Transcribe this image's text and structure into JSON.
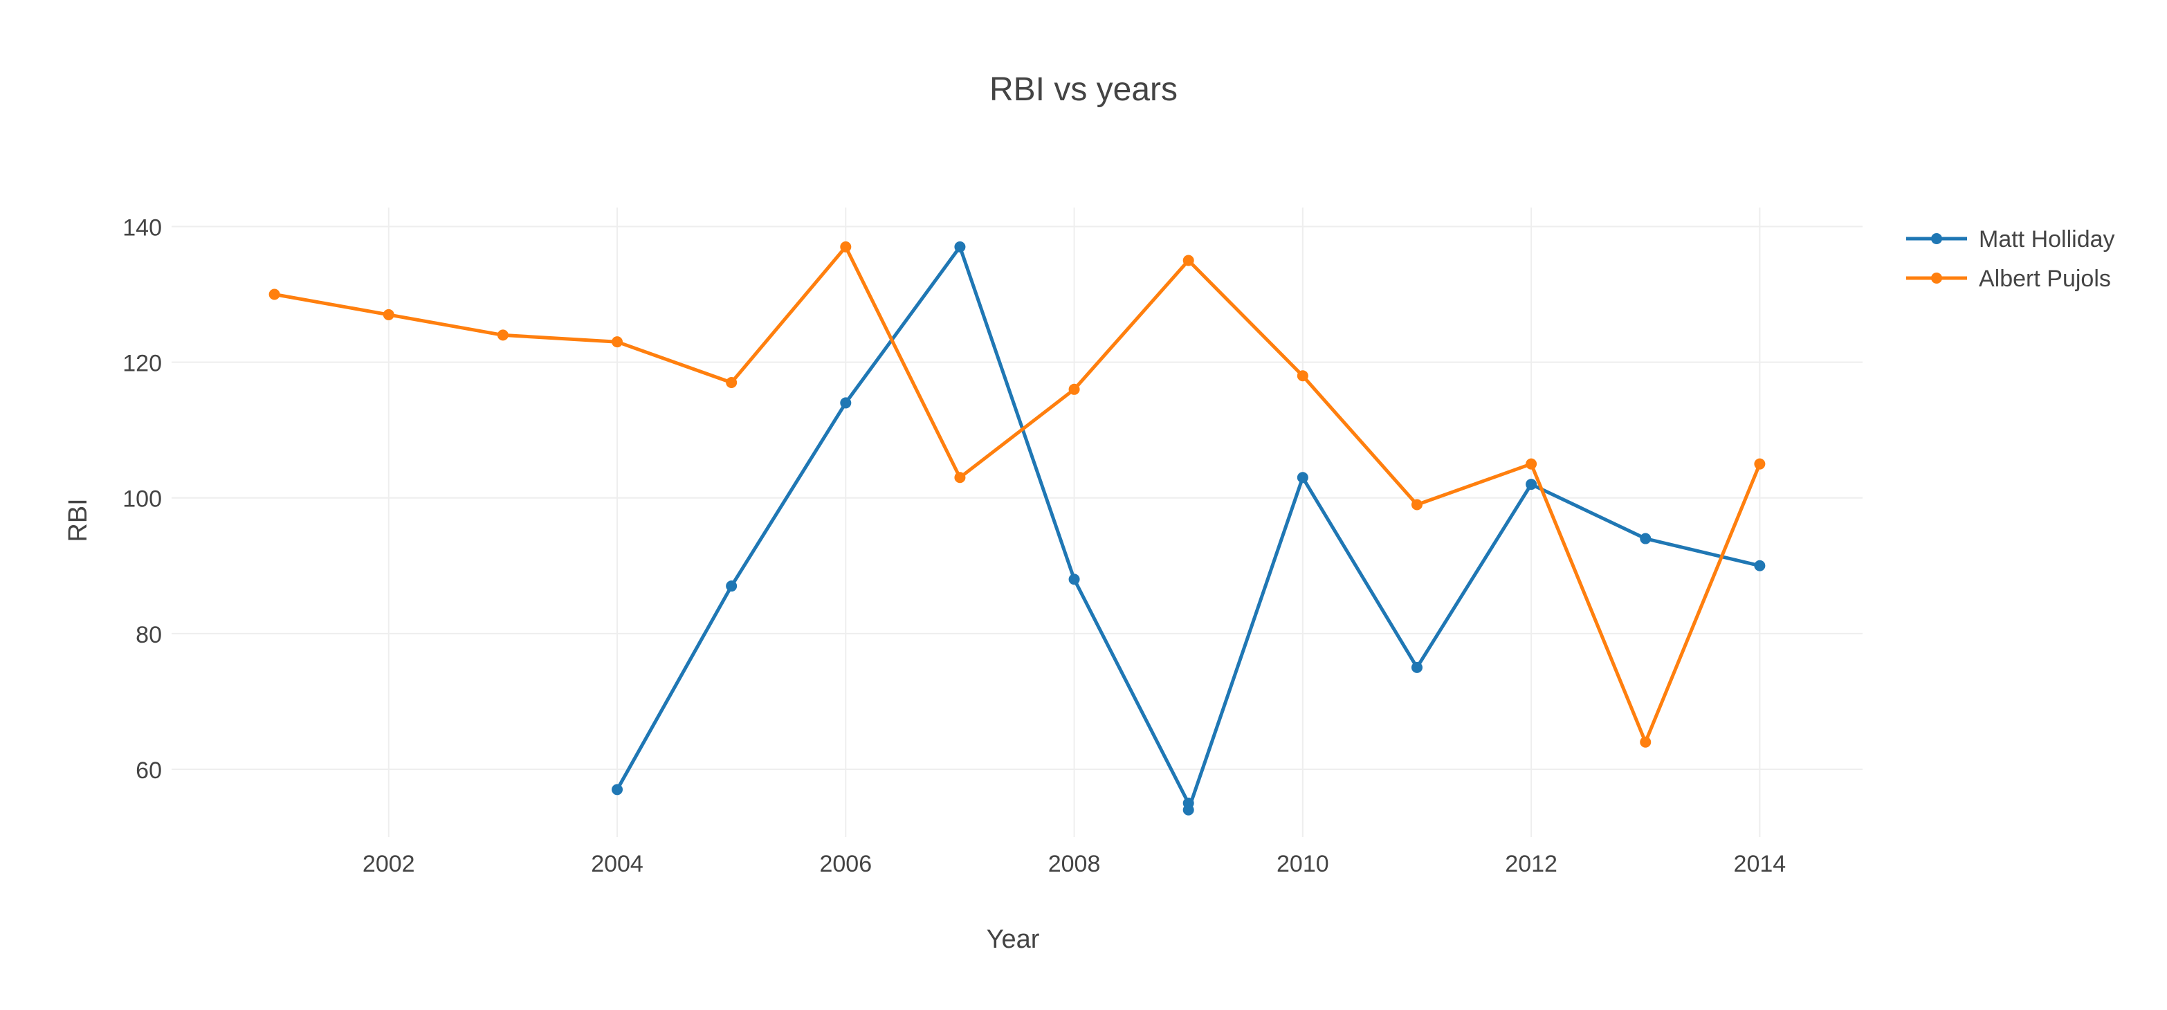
{
  "chart_data": {
    "type": "line",
    "title": "RBI vs years",
    "xlabel": "Year",
    "ylabel": "RBI",
    "xlim": [
      2000.1,
      2014.9
    ],
    "ylim": [
      50,
      142.8
    ],
    "xticks": [
      2002,
      2004,
      2006,
      2008,
      2010,
      2012,
      2014
    ],
    "xtick_labels": [
      "2002",
      "2004",
      "2006",
      "2008",
      "2010",
      "2012",
      "2014"
    ],
    "yticks": [
      60,
      80,
      100,
      120,
      140
    ],
    "ytick_labels": [
      "60",
      "80",
      "100",
      "120",
      "140"
    ],
    "grid": true,
    "legend_position": "top-right",
    "series": [
      {
        "name": "Matt Holliday",
        "color": "#1f77b4",
        "x": [
          2004,
          2005,
          2006,
          2007,
          2008,
          2009,
          2009,
          2010,
          2011,
          2012,
          2013,
          2014
        ],
        "y": [
          57,
          87,
          114,
          137,
          88,
          55,
          54,
          103,
          75,
          102,
          94,
          90
        ]
      },
      {
        "name": "Albert Pujols",
        "color": "#ff7f0e",
        "x": [
          2001,
          2002,
          2003,
          2004,
          2005,
          2006,
          2007,
          2008,
          2009,
          2010,
          2011,
          2012,
          2013,
          2014
        ],
        "y": [
          130,
          127,
          124,
          123,
          117,
          137,
          103,
          116,
          135,
          118,
          99,
          105,
          64,
          105
        ]
      }
    ]
  }
}
